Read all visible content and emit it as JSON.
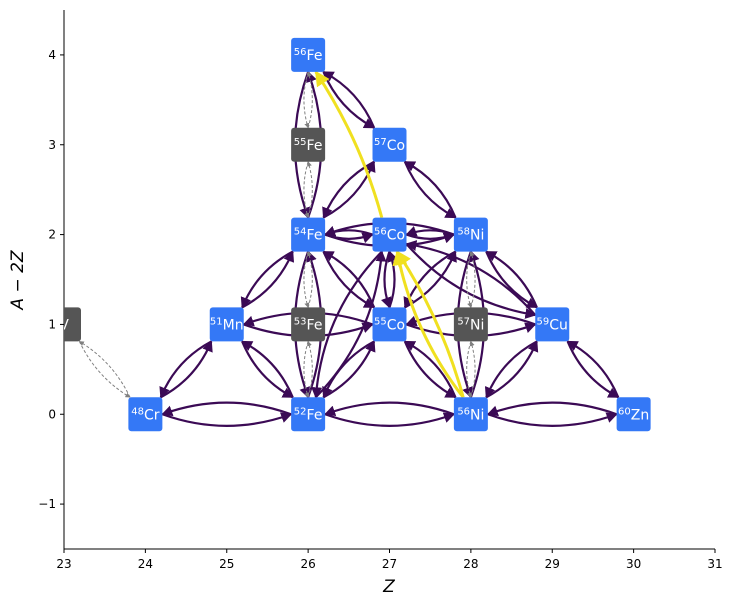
{
  "chart_data": {
    "type": "network",
    "xlabel": "Z",
    "ylabel": "A − 2Z",
    "xlim": [
      23,
      31
    ],
    "ylim": [
      -1.5,
      4.5
    ],
    "xticks": [
      "23",
      "24",
      "25",
      "26",
      "27",
      "28",
      "29",
      "30",
      "31"
    ],
    "yticks": [
      "−1",
      "0",
      "1",
      "2",
      "3",
      "4"
    ],
    "colors": {
      "active_node": "#3478f6",
      "inactive_node": "#555555",
      "link": "#3b0a55",
      "weak_link": "#808080",
      "highlight": "#f0e020"
    },
    "nodes": [
      {
        "id": "V",
        "mass": "",
        "elem": "V",
        "Z": 23,
        "N": 1,
        "active": false
      },
      {
        "id": "48Cr",
        "mass": "48",
        "elem": "Cr",
        "Z": 24,
        "N": 0,
        "active": true
      },
      {
        "id": "51Mn",
        "mass": "51",
        "elem": "Mn",
        "Z": 25,
        "N": 1,
        "active": true
      },
      {
        "id": "52Fe",
        "mass": "52",
        "elem": "Fe",
        "Z": 26,
        "N": 0,
        "active": true
      },
      {
        "id": "53Fe",
        "mass": "53",
        "elem": "Fe",
        "Z": 26,
        "N": 1,
        "active": false
      },
      {
        "id": "54Fe",
        "mass": "54",
        "elem": "Fe",
        "Z": 26,
        "N": 2,
        "active": true
      },
      {
        "id": "55Fe",
        "mass": "55",
        "elem": "Fe",
        "Z": 26,
        "N": 3,
        "active": false
      },
      {
        "id": "56Fe",
        "mass": "56",
        "elem": "Fe",
        "Z": 26,
        "N": 4,
        "active": true
      },
      {
        "id": "55Co",
        "mass": "55",
        "elem": "Co",
        "Z": 27,
        "N": 1,
        "active": true
      },
      {
        "id": "56Co",
        "mass": "56",
        "elem": "Co",
        "Z": 27,
        "N": 2,
        "active": true
      },
      {
        "id": "57Co",
        "mass": "57",
        "elem": "Co",
        "Z": 27,
        "N": 3,
        "active": true
      },
      {
        "id": "56Ni",
        "mass": "56",
        "elem": "Ni",
        "Z": 28,
        "N": 0,
        "active": true
      },
      {
        "id": "57Ni",
        "mass": "57",
        "elem": "Ni",
        "Z": 28,
        "N": 1,
        "active": false
      },
      {
        "id": "58Ni",
        "mass": "58",
        "elem": "Ni",
        "Z": 28,
        "N": 2,
        "active": true
      },
      {
        "id": "59Cu",
        "mass": "59",
        "elem": "Cu",
        "Z": 29,
        "N": 1,
        "active": true
      },
      {
        "id": "60Zn",
        "mass": "60",
        "elem": "Zn",
        "Z": 30,
        "N": 0,
        "active": true
      }
    ],
    "links": [
      [
        "48Cr",
        "52Fe"
      ],
      [
        "52Fe",
        "56Ni"
      ],
      [
        "56Ni",
        "60Zn"
      ],
      [
        "48Cr",
        "51Mn"
      ],
      [
        "51Mn",
        "52Fe"
      ],
      [
        "51Mn",
        "54Fe"
      ],
      [
        "51Mn",
        "55Co"
      ],
      [
        "52Fe",
        "55Co"
      ],
      [
        "55Co",
        "56Ni"
      ],
      [
        "56Ni",
        "59Cu"
      ],
      [
        "59Cu",
        "60Zn"
      ],
      [
        "54Fe",
        "55Co"
      ],
      [
        "55Co",
        "58Ni"
      ],
      [
        "58Ni",
        "59Cu"
      ],
      [
        "52Fe",
        "54Fe"
      ],
      [
        "54Fe",
        "56Fe"
      ],
      [
        "54Fe",
        "57Co"
      ],
      [
        "57Co",
        "56Fe"
      ],
      [
        "57Co",
        "58Ni"
      ],
      [
        "56Ni",
        "58Ni"
      ],
      [
        "54Fe",
        "58Ni"
      ],
      [
        "55Co",
        "59Cu"
      ],
      [
        "56Co",
        "59Cu"
      ],
      [
        "52Fe",
        "56Co"
      ],
      [
        "56Co",
        "54Fe"
      ],
      [
        "56Co",
        "58Ni"
      ],
      [
        "55Co",
        "56Co"
      ]
    ],
    "weak_links": [
      [
        "52Fe",
        "53Fe"
      ],
      [
        "53Fe",
        "54Fe"
      ],
      [
        "54Fe",
        "55Fe"
      ],
      [
        "55Fe",
        "56Fe"
      ],
      [
        "56Ni",
        "57Ni"
      ],
      [
        "57Ni",
        "58Ni"
      ],
      [
        "48Cr",
        "V"
      ]
    ],
    "highlight_path": [
      [
        "56Ni",
        "56Co"
      ],
      [
        "56Co",
        "56Fe"
      ],
      [
        "56Ni",
        "56Co"
      ]
    ]
  }
}
